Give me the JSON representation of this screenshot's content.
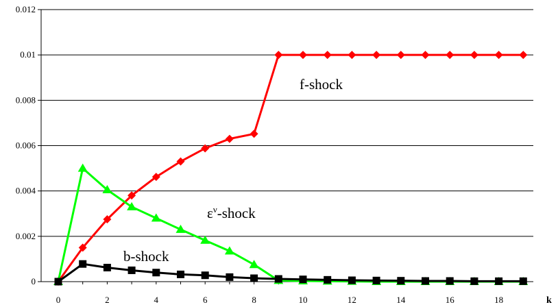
{
  "chart_data": {
    "type": "line",
    "x": [
      0,
      1,
      2,
      3,
      4,
      5,
      6,
      7,
      8,
      9,
      10,
      11,
      12,
      13,
      14,
      15,
      16,
      17,
      18,
      19
    ],
    "xticks": [
      "0",
      "2",
      "4",
      "6",
      "8",
      "10",
      "12",
      "14",
      "16",
      "18"
    ],
    "xtick_values": [
      0,
      2,
      4,
      6,
      8,
      10,
      12,
      14,
      16,
      18
    ],
    "xlabel": "k",
    "xlim": [
      0,
      19.6
    ],
    "ylim": [
      0,
      0.012
    ],
    "yticks": [
      "0",
      "0.002",
      "0.004",
      "0.006",
      "0.008",
      "0.01",
      "0.012"
    ],
    "ytick_values": [
      0,
      0.002,
      0.004,
      0.006,
      0.008,
      0.01,
      0.012
    ],
    "grid": "horizontal",
    "series": [
      {
        "name": "f-shock",
        "color": "#ff0000",
        "marker": "diamond",
        "values": [
          0,
          0.0015,
          0.00275,
          0.0038,
          0.00462,
          0.0053,
          0.00588,
          0.0063,
          0.00652,
          0.01,
          0.01,
          0.01,
          0.01,
          0.01,
          0.01,
          0.01,
          0.01,
          0.01,
          0.01,
          0.01
        ]
      },
      {
        "name": "εν-shock",
        "color": "#00ff00",
        "marker": "triangle",
        "values": [
          0,
          0.005,
          0.00405,
          0.0033,
          0.0028,
          0.0023,
          0.00182,
          0.00135,
          0.00075,
          5e-05,
          3e-05,
          2e-05,
          1e-05,
          0,
          0,
          0,
          0,
          0,
          0,
          0
        ]
      },
      {
        "name": "b-shock",
        "color": "#000000",
        "marker": "square",
        "values": [
          0,
          0.00078,
          0.00062,
          0.0005,
          0.0004,
          0.00032,
          0.00028,
          0.0002,
          0.00015,
          0.00012,
          0.0001,
          8e-05,
          6e-05,
          5e-05,
          4e-05,
          3e-05,
          3e-05,
          2e-05,
          2e-05,
          2e-05
        ]
      }
    ],
    "labels": {
      "f": "f-shock",
      "eps_base": "ε",
      "eps_sup": "ν",
      "eps_rest": "-shock",
      "b": "b-shock"
    }
  }
}
